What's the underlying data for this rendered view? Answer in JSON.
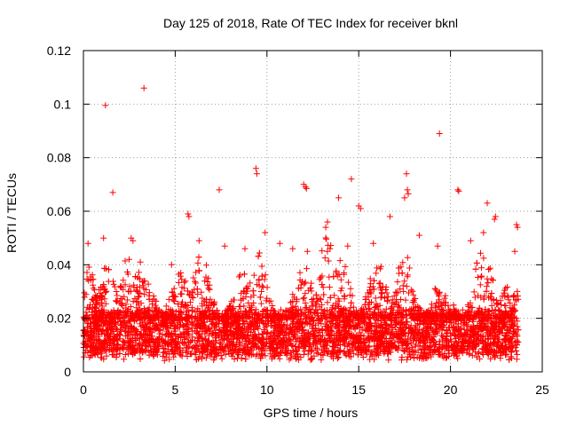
{
  "chart_data": {
    "type": "scatter",
    "title": "Day 125 of 2018, Rate Of TEC Index for receiver bknl",
    "xlabel": "GPS time / hours",
    "ylabel": "ROTI / TECUs",
    "xlim": [
      0,
      25
    ],
    "ylim": [
      0,
      0.12
    ],
    "xticks": [
      0,
      5,
      10,
      15,
      20,
      25
    ],
    "yticks": [
      0,
      0.02,
      0.04,
      0.06,
      0.08,
      0.1,
      0.12
    ],
    "xtick_labels": [
      "0",
      "5",
      "10",
      "15",
      "20",
      "25"
    ],
    "ytick_labels": [
      "0",
      "0.02",
      "0.04",
      "0.06",
      "0.08",
      "0.1",
      "0.12"
    ],
    "grid": true,
    "marker": "+",
    "color": "#ff0000",
    "series": [
      {
        "name": "ROTI",
        "points": [
          [
            1.2,
            0.0995
          ],
          [
            3.3,
            0.106
          ],
          [
            19.4,
            0.089
          ],
          [
            9.4,
            0.076
          ],
          [
            9.45,
            0.074
          ],
          [
            17.6,
            0.074
          ],
          [
            7.4,
            0.068
          ],
          [
            1.6,
            0.067
          ],
          [
            12.0,
            0.07
          ],
          [
            12.1,
            0.069
          ],
          [
            12.15,
            0.0685
          ],
          [
            14.6,
            0.072
          ],
          [
            20.4,
            0.068
          ],
          [
            20.45,
            0.0675
          ],
          [
            13.9,
            0.065
          ],
          [
            22.0,
            0.063
          ],
          [
            15.0,
            0.062
          ],
          [
            15.1,
            0.061
          ],
          [
            17.5,
            0.065
          ],
          [
            17.65,
            0.068
          ],
          [
            17.7,
            0.0665
          ],
          [
            16.7,
            0.058
          ],
          [
            5.7,
            0.059
          ],
          [
            5.75,
            0.058
          ],
          [
            9.9,
            0.052
          ],
          [
            13.2,
            0.054
          ],
          [
            13.3,
            0.056
          ],
          [
            22.4,
            0.057
          ],
          [
            22.45,
            0.058
          ],
          [
            23.6,
            0.055
          ],
          [
            23.65,
            0.054
          ],
          [
            0.25,
            0.048
          ],
          [
            1.1,
            0.05
          ],
          [
            2.6,
            0.05
          ],
          [
            2.7,
            0.049
          ],
          [
            19.3,
            0.047
          ],
          [
            18.3,
            0.051
          ],
          [
            12.2,
            0.045
          ],
          [
            11.4,
            0.046
          ],
          [
            10.7,
            0.048
          ],
          [
            8.8,
            0.046
          ],
          [
            7.7,
            0.047
          ],
          [
            4.8,
            0.04
          ],
          [
            3.1,
            0.041
          ],
          [
            6.3,
            0.049
          ],
          [
            14.4,
            0.047
          ],
          [
            15.8,
            0.048
          ],
          [
            21.1,
            0.049
          ],
          [
            21.8,
            0.052
          ],
          [
            23.5,
            0.045
          ]
        ],
        "density_profile": {
          "x_range": [
            0,
            23.7
          ],
          "baseline_min": 0.004,
          "baseline_max": 0.02,
          "peak_hours": [
            0.2,
            1.3,
            2.6,
            3.4,
            5.2,
            6.4,
            8.7,
            9.5,
            12.0,
            13.3,
            14.0,
            16.0,
            17.5,
            19.5,
            21.8,
            23.3
          ],
          "peak_values": [
            0.04,
            0.04,
            0.048,
            0.035,
            0.04,
            0.045,
            0.038,
            0.045,
            0.043,
            0.052,
            0.045,
            0.042,
            0.045,
            0.035,
            0.05,
            0.035
          ]
        }
      }
    ]
  }
}
